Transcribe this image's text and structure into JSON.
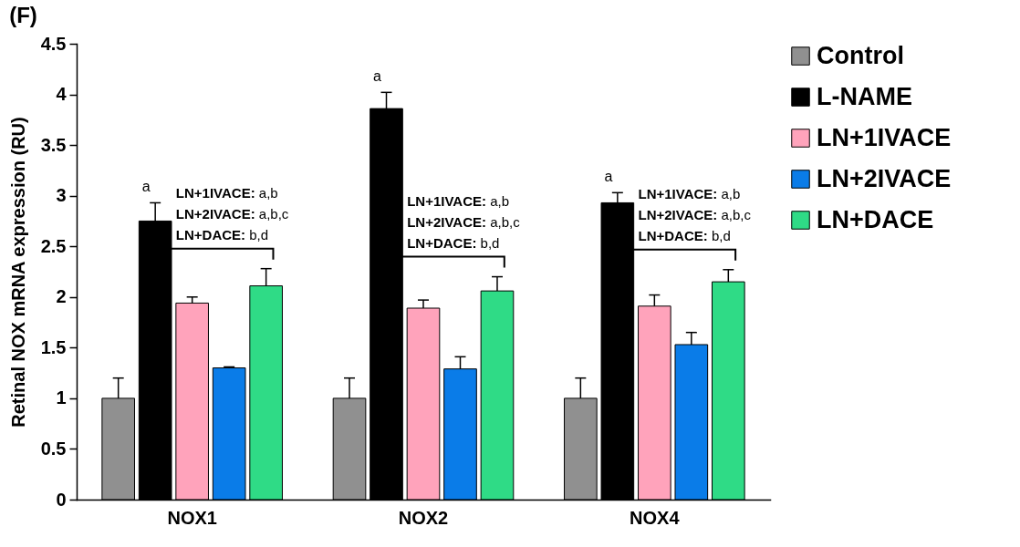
{
  "chart_data": {
    "type": "bar",
    "title": "(F)",
    "ylabel": "Retinal NOX mRNA expression (RU)",
    "categories": [
      "NOX1",
      "NOX2",
      "NOX4"
    ],
    "series": [
      {
        "name": "Control",
        "color": "#909090",
        "values": [
          1.0,
          1.0,
          1.0
        ],
        "errors": [
          0.2,
          0.2,
          0.2
        ]
      },
      {
        "name": "L-NAME",
        "color": "#000000",
        "values": [
          2.75,
          3.86,
          2.93
        ],
        "errors": [
          0.18,
          0.16,
          0.1
        ]
      },
      {
        "name": "LN+1IVACE",
        "color": "#ffa3bb",
        "values": [
          1.94,
          1.89,
          1.91
        ],
        "errors": [
          0.06,
          0.08,
          0.11
        ]
      },
      {
        "name": "LN+2IVACE",
        "color": "#0a7ce8",
        "values": [
          1.3,
          1.29,
          1.53
        ],
        "errors": [
          0.01,
          0.12,
          0.12
        ]
      },
      {
        "name": "LN+DACE",
        "color": "#2fdb86",
        "values": [
          2.11,
          2.06,
          2.15
        ],
        "errors": [
          0.17,
          0.14,
          0.12
        ]
      }
    ],
    "ylim": [
      0,
      4.5
    ],
    "yticks": [
      0,
      0.5,
      1,
      1.5,
      2,
      2.5,
      3,
      3.5,
      4,
      4.5
    ],
    "grid": false,
    "legend": "top right",
    "annotations": [
      "a",
      "LN+1IVACE: a,b",
      "LN+2IVACE: a,b,c",
      "LN+DACE: b,d",
      "a",
      "LN+1IVACE: a,b",
      "LN+2IVACE: a,b,c",
      "LN+DACE: b,d",
      "a",
      "LN+1IVACE: a,b",
      "LN+2IVACE: a,b,c",
      "LN+DACE: b,d"
    ]
  }
}
